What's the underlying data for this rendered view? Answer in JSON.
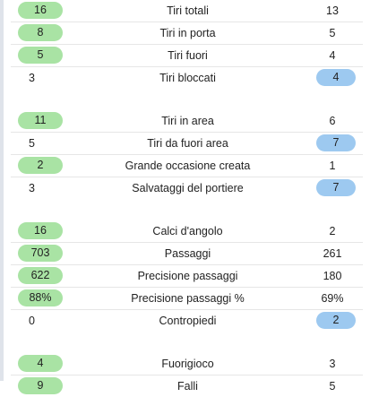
{
  "colors": {
    "home_highlight": "#a9e3a4",
    "away_highlight": "#9dc9f0"
  },
  "groups": [
    {
      "rows": [
        {
          "label": "Tiri totali",
          "home": "16",
          "away": "13",
          "leader": "home"
        },
        {
          "label": "Tiri in porta",
          "home": "8",
          "away": "5",
          "leader": "home"
        },
        {
          "label": "Tiri fuori",
          "home": "5",
          "away": "4",
          "leader": "home"
        },
        {
          "label": "Tiri bloccati",
          "home": "3",
          "away": "4",
          "leader": "away"
        }
      ]
    },
    {
      "rows": [
        {
          "label": "Tiri in area",
          "home": "11",
          "away": "6",
          "leader": "home"
        },
        {
          "label": "Tiri da fuori area",
          "home": "5",
          "away": "7",
          "leader": "away"
        },
        {
          "label": "Grande occasione creata",
          "home": "2",
          "away": "1",
          "leader": "home"
        },
        {
          "label": "Salvataggi del portiere",
          "home": "3",
          "away": "7",
          "leader": "away"
        }
      ]
    },
    {
      "rows": [
        {
          "label": "Calci d'angolo",
          "home": "16",
          "away": "2",
          "leader": "home"
        },
        {
          "label": "Passaggi",
          "home": "703",
          "away": "261",
          "leader": "home"
        },
        {
          "label": "Precisione passaggi",
          "home": "622",
          "away": "180",
          "leader": "home"
        },
        {
          "label": "Precisione passaggi %",
          "home": "88%",
          "away": "69%",
          "leader": "home"
        },
        {
          "label": "Contropiedi",
          "home": "0",
          "away": "2",
          "leader": "away"
        }
      ]
    },
    {
      "rows": [
        {
          "label": "Fuorigioco",
          "home": "4",
          "away": "3",
          "leader": "home"
        },
        {
          "label": "Falli",
          "home": "9",
          "away": "5",
          "leader": "home"
        }
      ]
    }
  ]
}
